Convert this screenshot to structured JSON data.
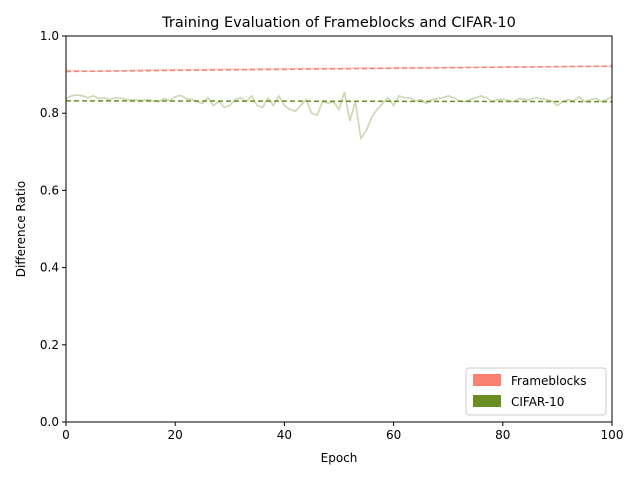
{
  "chart_data": {
    "type": "line",
    "title": "Training Evaluation of Frameblocks and CIFAR-10",
    "xlabel": "Epoch",
    "ylabel": "Difference Ratio",
    "xlim": [
      0,
      100
    ],
    "ylim": [
      0,
      1.0
    ],
    "xticks": [
      "0",
      "20",
      "40",
      "60",
      "80",
      "100"
    ],
    "yticks": [
      "0.0",
      "0.2",
      "0.4",
      "0.6",
      "0.8",
      "1.0"
    ],
    "grid": false,
    "legend_position": "lower-right",
    "series": [
      {
        "name": "Frameblocks",
        "color": "#fa8072",
        "raw_values": [
          0.912,
          0.911,
          0.91,
          0.91,
          0.909,
          0.909,
          0.909,
          0.91,
          0.91,
          0.91,
          0.91,
          0.91,
          0.911,
          0.911,
          0.911,
          0.912,
          0.912,
          0.912,
          0.912,
          0.913,
          0.913,
          0.913,
          0.913,
          0.913,
          0.913,
          0.913,
          0.913,
          0.914,
          0.914,
          0.914,
          0.914,
          0.914,
          0.914,
          0.914,
          0.915,
          0.915,
          0.915,
          0.915,
          0.915,
          0.915,
          0.915,
          0.915,
          0.916,
          0.916,
          0.916,
          0.916,
          0.916,
          0.916,
          0.916,
          0.916,
          0.916,
          0.917,
          0.917,
          0.917,
          0.917,
          0.917,
          0.917,
          0.917,
          0.917,
          0.917,
          0.918,
          0.918,
          0.918,
          0.918,
          0.918,
          0.918,
          0.918,
          0.918,
          0.918,
          0.918,
          0.919,
          0.919,
          0.919,
          0.919,
          0.919,
          0.919,
          0.919,
          0.919,
          0.919,
          0.919,
          0.92,
          0.92,
          0.92,
          0.92,
          0.92,
          0.92,
          0.92,
          0.92,
          0.92,
          0.92,
          0.92,
          0.92,
          0.921,
          0.921,
          0.921,
          0.921,
          0.921,
          0.921,
          0.921,
          0.921,
          0.921
        ],
        "trend": [
          0.908,
          0.922
        ]
      },
      {
        "name": "CIFAR-10",
        "color": "#6b8e23",
        "raw_values": [
          0.838,
          0.845,
          0.847,
          0.845,
          0.84,
          0.845,
          0.838,
          0.84,
          0.835,
          0.84,
          0.839,
          0.836,
          0.834,
          0.834,
          0.833,
          0.835,
          0.832,
          0.83,
          0.838,
          0.832,
          0.843,
          0.846,
          0.838,
          0.836,
          0.83,
          0.825,
          0.84,
          0.82,
          0.83,
          0.815,
          0.82,
          0.835,
          0.84,
          0.83,
          0.845,
          0.82,
          0.815,
          0.84,
          0.82,
          0.845,
          0.82,
          0.81,
          0.805,
          0.82,
          0.835,
          0.8,
          0.795,
          0.83,
          0.826,
          0.83,
          0.81,
          0.855,
          0.78,
          0.83,
          0.735,
          0.755,
          0.79,
          0.81,
          0.825,
          0.84,
          0.82,
          0.845,
          0.84,
          0.84,
          0.832,
          0.835,
          0.825,
          0.835,
          0.838,
          0.84,
          0.845,
          0.84,
          0.832,
          0.83,
          0.835,
          0.84,
          0.845,
          0.84,
          0.83,
          0.835,
          0.836,
          0.833,
          0.83,
          0.838,
          0.835,
          0.835,
          0.84,
          0.838,
          0.835,
          0.832,
          0.82,
          0.83,
          0.835,
          0.832,
          0.843,
          0.83,
          0.835,
          0.838,
          0.83,
          0.835,
          0.843
        ],
        "trend": [
          0.832,
          0.83
        ]
      }
    ]
  }
}
